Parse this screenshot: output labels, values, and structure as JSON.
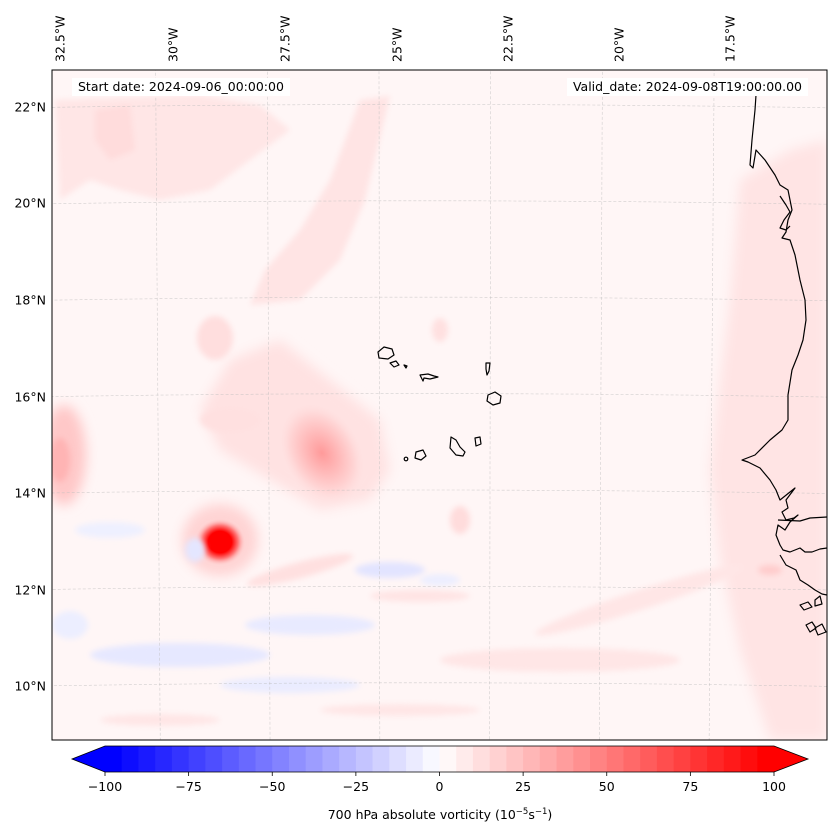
{
  "figure": {
    "type": "map",
    "title_left": "Start date: 2024-09-06_00:00:00",
    "title_right": "Valid_date: 2024-09-08T19:00:00.00",
    "region": "Eastern tropical Atlantic, Cape Verde Islands and West African coast (Senegal, Mauritania, Gambia, Guinea-Bissau)"
  },
  "axes": {
    "lon_ticks": [
      "32.5°W",
      "30°W",
      "27.5°W",
      "25°W",
      "22.5°W",
      "20°W",
      "17.5°W"
    ],
    "lon_values": [
      -32.5,
      -30,
      -27.5,
      -25,
      -22.5,
      -20,
      -17.5
    ],
    "lat_ticks": [
      "22°N",
      "20°N",
      "18°N",
      "16°N",
      "14°N",
      "12°N",
      "10°N"
    ],
    "lat_values": [
      22,
      20,
      18,
      16,
      14,
      12,
      10
    ],
    "lon_range": [
      -33,
      -15.5
    ],
    "lat_range": [
      8.9,
      22.7
    ],
    "gridlines": true
  },
  "colorbar": {
    "label_main": "700 hPa absolute vorticity (10",
    "label_exp1": "−5",
    "label_mid": "s",
    "label_exp2": "−1",
    "label_end": ")",
    "ticks": [
      "−100",
      "−75",
      "−50",
      "−25",
      "0",
      "25",
      "50",
      "75",
      "100"
    ],
    "tick_values": [
      -100,
      -75,
      -50,
      -25,
      0,
      25,
      50,
      75,
      100
    ],
    "vmin": -100,
    "vmax": 100,
    "step": 5,
    "colormap": "bwr",
    "extend": "both",
    "color_min": "#0000ff",
    "color_mid": "#ffffff",
    "color_max": "#ff0000"
  },
  "features": [
    {
      "name": "vorticity-max-core",
      "lon": -28.6,
      "lat": 12.9,
      "value": 100
    },
    {
      "name": "vorticity-secondary-max",
      "lon": -25.6,
      "lat": 14.7,
      "value": 35
    },
    {
      "name": "vorticity-west-edge-max",
      "lon": -32.8,
      "lat": 14.6,
      "value": 25
    }
  ]
}
